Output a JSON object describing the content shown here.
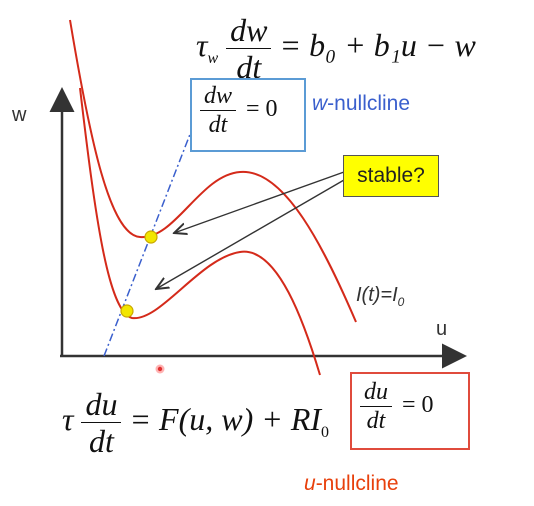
{
  "top_equation": {
    "tau": "τ",
    "tau_sub": "w",
    "numerator": "dw",
    "denominator": "dt",
    "rhs": "= b₀ + b₁u − w"
  },
  "w_nullcline_box": {
    "numerator": "dw",
    "denominator": "dt",
    "rhs": "= 0"
  },
  "w_nullcline_label": {
    "italic": "w",
    "rest": "-nullcline"
  },
  "axis": {
    "y_label": "w",
    "x_label": "u"
  },
  "stable_label": "stable?",
  "curve_label": {
    "prefix": "I(t)=I",
    "sub": "0"
  },
  "bottom_equation": {
    "tau": "τ",
    "numerator": "du",
    "denominator": "dt",
    "rhs_main": "= F(u, w) + RI",
    "rhs_sub": "0"
  },
  "u_nullcline_box": {
    "numerator": "du",
    "denominator": "dt",
    "rhs": "= 0"
  },
  "u_nullcline_label": {
    "italic": "u",
    "rest": "-nullcline"
  },
  "colors": {
    "curve": "#d42a1a",
    "w_nullcline": "#3a5fcd",
    "w_box_border": "#5b9bd5",
    "u_box_border": "#e04b3c",
    "stable_fill": "#ffff00",
    "fixed_point": "#f2e600",
    "u_label": "#e8400c"
  }
}
